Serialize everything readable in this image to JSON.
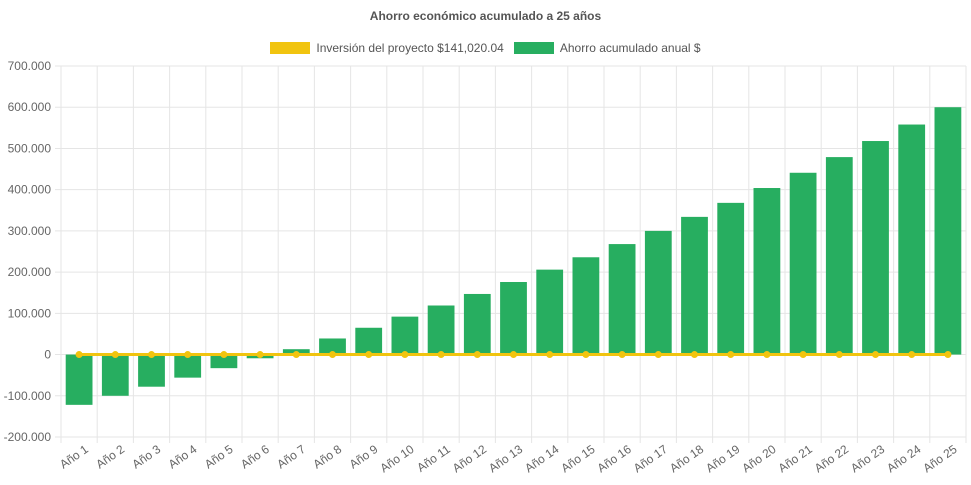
{
  "chart_data": {
    "type": "bar",
    "title": "Ahorro económico acumulado a 25 años",
    "categories": [
      "Año 1",
      "Año 2",
      "Año 3",
      "Año 4",
      "Año 5",
      "Año 6",
      "Año 7",
      "Año 8",
      "Año 9",
      "Año 10",
      "Año 11",
      "Año 12",
      "Año 13",
      "Año 14",
      "Año 15",
      "Año 16",
      "Año 17",
      "Año 18",
      "Año 19",
      "Año 20",
      "Año 21",
      "Año 22",
      "Año 23",
      "Año 24",
      "Año 25"
    ],
    "series": [
      {
        "name": "Inversión del proyecto $141,020.04",
        "type": "line",
        "color": "#f1c40f",
        "values": [
          0,
          0,
          0,
          0,
          0,
          0,
          0,
          0,
          0,
          0,
          0,
          0,
          0,
          0,
          0,
          0,
          0,
          0,
          0,
          0,
          0,
          0,
          0,
          0,
          0
        ]
      },
      {
        "name": "Ahorro acumulado anual $",
        "type": "bar",
        "color": "#27ae60",
        "values": [
          -122000,
          -100000,
          -78000,
          -56000,
          -33000,
          -9000,
          13000,
          39000,
          65000,
          92000,
          119000,
          147000,
          176000,
          206000,
          236000,
          268000,
          300000,
          334000,
          368000,
          404000,
          441000,
          479000,
          518000,
          558000,
          600000
        ]
      }
    ],
    "ylim": [
      -200000,
      700000
    ],
    "yticks": [
      700000,
      600000,
      500000,
      400000,
      300000,
      200000,
      100000,
      0,
      -100000,
      -200000
    ],
    "ytick_labels": [
      "700.000",
      "600.000",
      "500.000",
      "400.000",
      "300.000",
      "200.000",
      "100.000",
      "0",
      "-100.000",
      "-200.000"
    ],
    "grid": true,
    "legend_position": "top"
  }
}
